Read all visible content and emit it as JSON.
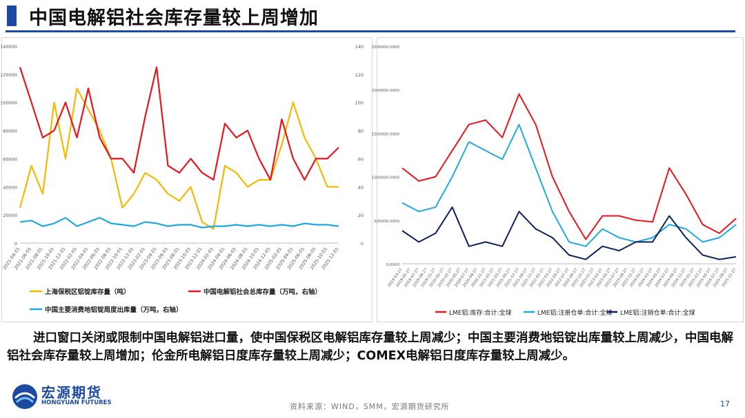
{
  "title": "中国电解铝社会库存量较上周增加",
  "body_text": "进口窗口关闭或限制中国电解铝进口量，使中国保税区电解铝库存量较上周减少；中国主要消费地铝锭出库量较上周减少，中国电解铝社会库存量较上周增加；伦金所电解铝日度库存量较上周减少；COMEX电解铝日度库存量较上周减少。",
  "logo": {
    "name": "宏源期货",
    "en": "HONGYUAN FUTURES"
  },
  "source": "资料来源：WIND，SMM，宏源期货研究所",
  "page_number": "17",
  "colors": {
    "accent": "#1c4aa0",
    "yellow": "#f5b800",
    "red": "#e8141b",
    "cyan": "#1ea7e0",
    "navy": "#0d1f5e"
  },
  "chart_data": [
    {
      "type": "line",
      "x_ticks": [
        "2021-04-01",
        "2021-06-01",
        "2021-08-01",
        "2021-10-01",
        "2021-12-01",
        "2022-02-01",
        "2022-04-01",
        "2022-06-01",
        "2022-08-01",
        "2022-10-01",
        "2022-12-01",
        "2023-02-01",
        "2023-04-01",
        "2023-06-01",
        "2023-08-01",
        "2023-10-01",
        "2023-12-01",
        "2024-02-01",
        "2024-04-01",
        "2024-06-01",
        "2024-08-01",
        "2024-10-01",
        "2024-12-01",
        "2025-02-01",
        "2025-04-01",
        "2025-06-01",
        "2025-08-01",
        "2025-10-01",
        "2025-12-01"
      ],
      "y_left_ticks": [
        "0",
        "20000",
        "40000",
        "60000",
        "80000",
        "100000",
        "120000",
        "140000"
      ],
      "y_right_ticks": [
        "0",
        "20",
        "40",
        "60",
        "80",
        "100",
        "120",
        "140"
      ],
      "ylim_left": [
        0,
        140000
      ],
      "ylim_right": [
        0,
        140
      ],
      "legend": [
        "上海保税区铝锭库存量（吨）",
        "中国电解铝社会总库存量（万吨，右轴）",
        "中国主要消费地铝锭周度出库量（万吨，右轴）"
      ],
      "series": [
        {
          "name": "上海保税区铝锭库存量（吨）",
          "axis": "left",
          "x": [
            0,
            1,
            2,
            3,
            4,
            5,
            6,
            7,
            8,
            9,
            10,
            11,
            12,
            13,
            14,
            15,
            16,
            17,
            18,
            19,
            20,
            21,
            22,
            23,
            24,
            25,
            26,
            27,
            28
          ],
          "values": [
            25000,
            55000,
            35000,
            100000,
            60000,
            110000,
            95000,
            80000,
            60000,
            25000,
            35000,
            50000,
            45000,
            35000,
            30000,
            40000,
            15000,
            10000,
            55000,
            50000,
            40000,
            45000,
            45000,
            70000,
            100000,
            75000,
            60000,
            40000,
            40000
          ]
        },
        {
          "name": "中国电解铝社会总库存量（万吨，右轴）",
          "axis": "right",
          "x": [
            0,
            1,
            2,
            3,
            4,
            5,
            6,
            7,
            8,
            9,
            10,
            11,
            12,
            13,
            14,
            15,
            16,
            17,
            18,
            19,
            20,
            21,
            22,
            23,
            24,
            25,
            26,
            27,
            28
          ],
          "values": [
            125,
            100,
            75,
            80,
            100,
            75,
            110,
            75,
            60,
            60,
            50,
            90,
            125,
            55,
            50,
            60,
            50,
            45,
            85,
            75,
            80,
            60,
            45,
            88,
            60,
            45,
            60,
            60,
            68
          ]
        },
        {
          "name": "中国主要消费地铝锭周度出库量（万吨，右轴）",
          "axis": "right",
          "x": [
            0,
            1,
            2,
            3,
            4,
            5,
            6,
            7,
            8,
            9,
            10,
            11,
            12,
            13,
            14,
            15,
            16,
            17,
            18,
            19,
            20,
            21,
            22,
            23,
            24,
            25,
            26,
            27,
            28
          ],
          "values": [
            15,
            16,
            12,
            14,
            18,
            12,
            15,
            18,
            14,
            13,
            12,
            15,
            14,
            12,
            13,
            13,
            11,
            12,
            12,
            13,
            12,
            13,
            12,
            13,
            12,
            14,
            13,
            13,
            12
          ]
        }
      ]
    },
    {
      "type": "line",
      "x_ticks": [
        "2019-03-27",
        "2019-05-27",
        "2019-07-27",
        "2019-09-27",
        "2019-11-27",
        "2020-01-27",
        "2020-03-27",
        "2020-05-27",
        "2020-07-27",
        "2020-09-27",
        "2020-11-27",
        "2021-01-27",
        "2021-03-27",
        "2021-05-27",
        "2021-07-27",
        "2021-09-27",
        "2021-11-27",
        "2022-01-27",
        "2022-03-27",
        "2022-05-27",
        "2022-07-27",
        "2022-09-27",
        "2022-11-27",
        "2023-01-27",
        "2023-03-27",
        "2023-05-27",
        "2023-07-27",
        "2023-09-27",
        "2023-11-27",
        "2024-01-27",
        "2024-03-27",
        "2024-05-27",
        "2024-07-27",
        "2024-09-27",
        "2024-11-27",
        "2025-01-27",
        "2025-03-27",
        "2025-05-27",
        "2025-07-27",
        "2025-09-27",
        "2025-11-27"
      ],
      "y_ticks": [
        "0.0000",
        "500000.0000",
        "1000000.0000",
        "1500000.0000",
        "2000000.0000",
        "2500000.0000"
      ],
      "ylim": [
        0,
        2500000
      ],
      "legend": [
        "LME铝:库存:合计:全球",
        "LME铝:注册仓单:合计:全球",
        "LME铝:注销仓单:合计:全球"
      ],
      "series": [
        {
          "name": "LME铝:库存:合计:全球",
          "x": [
            0,
            2,
            4,
            6,
            8,
            10,
            12,
            14,
            16,
            18,
            20,
            22,
            24,
            26,
            28,
            30,
            32,
            34,
            36,
            38,
            40
          ],
          "values": [
            1100000,
            950000,
            1000000,
            1300000,
            1600000,
            1650000,
            1450000,
            1950000,
            1600000,
            1000000,
            600000,
            280000,
            550000,
            550000,
            500000,
            480000,
            1100000,
            800000,
            450000,
            350000,
            520000
          ]
        },
        {
          "name": "LME铝:注册仓单:合计:全球",
          "x": [
            0,
            2,
            4,
            6,
            8,
            10,
            12,
            14,
            16,
            18,
            20,
            22,
            24,
            26,
            28,
            30,
            32,
            34,
            36,
            38,
            40
          ],
          "values": [
            700000,
            600000,
            650000,
            1000000,
            1400000,
            1300000,
            1200000,
            1600000,
            1100000,
            600000,
            250000,
            200000,
            400000,
            300000,
            250000,
            300000,
            450000,
            400000,
            250000,
            300000,
            450000
          ]
        },
        {
          "name": "LME铝:注销仓单:合计:全球",
          "x": [
            0,
            2,
            4,
            6,
            8,
            10,
            12,
            14,
            16,
            18,
            20,
            22,
            24,
            26,
            28,
            30,
            32,
            34,
            36,
            38,
            40
          ],
          "values": [
            380000,
            250000,
            350000,
            650000,
            200000,
            250000,
            200000,
            600000,
            400000,
            300000,
            100000,
            50000,
            200000,
            150000,
            250000,
            250000,
            550000,
            300000,
            100000,
            50000,
            80000
          ]
        }
      ]
    }
  ]
}
